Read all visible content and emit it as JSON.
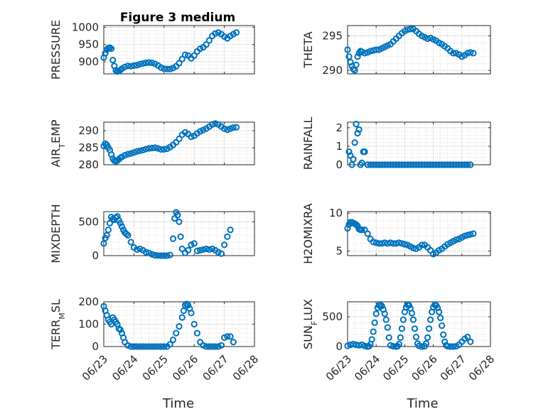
{
  "chart_data": [
    {
      "type": "scatter",
      "title": "Figure 3 medium",
      "ylabel": "PRESSURE",
      "xlabel": "",
      "xlim": [
        0,
        5
      ],
      "ylim": [
        865,
        1005
      ],
      "yticks": [
        900,
        950,
        1000
      ],
      "xticks": [
        "06/23",
        "06/24",
        "06/25",
        "06/26",
        "06/27",
        "06/28"
      ],
      "show_xticklabels": false,
      "x": [
        0.0,
        0.05,
        0.1,
        0.15,
        0.2,
        0.25,
        0.3,
        0.35,
        0.4,
        0.45,
        0.5,
        0.55,
        0.6,
        0.7,
        0.8,
        0.9,
        1.0,
        1.1,
        1.2,
        1.3,
        1.4,
        1.5,
        1.6,
        1.7,
        1.8,
        1.9,
        2.0,
        2.1,
        2.2,
        2.3,
        2.4,
        2.5,
        2.6,
        2.7,
        2.8,
        2.9,
        3.0,
        3.1,
        3.2,
        3.3,
        3.4,
        3.5,
        3.6,
        3.7,
        3.8,
        3.9,
        4.0,
        4.1,
        4.2,
        4.3,
        4.4
      ],
      "values": [
        912,
        925,
        935,
        940,
        941,
        938,
        905,
        888,
        875,
        872,
        873,
        876,
        880,
        885,
        888,
        887,
        889,
        890,
        893,
        895,
        897,
        898,
        897,
        894,
        889,
        883,
        880,
        879,
        879,
        882,
        887,
        896,
        908,
        920,
        918,
        910,
        918,
        930,
        938,
        942,
        950,
        962,
        975,
        982,
        985,
        980,
        973,
        968,
        975,
        980,
        985
      ]
    },
    {
      "type": "scatter",
      "title": "",
      "ylabel": "THETA",
      "xlabel": "",
      "xlim": [
        0,
        5
      ],
      "ylim": [
        289.5,
        296.5
      ],
      "yticks": [
        290,
        295
      ],
      "xticks": [
        "06/23",
        "06/24",
        "06/25",
        "06/26",
        "06/27",
        "06/28"
      ],
      "show_xticklabels": false,
      "x": [
        0.0,
        0.05,
        0.1,
        0.15,
        0.2,
        0.25,
        0.3,
        0.35,
        0.4,
        0.45,
        0.5,
        0.6,
        0.7,
        0.8,
        0.9,
        1.0,
        1.1,
        1.2,
        1.3,
        1.4,
        1.5,
        1.6,
        1.7,
        1.8,
        1.9,
        2.0,
        2.1,
        2.2,
        2.3,
        2.4,
        2.5,
        2.6,
        2.7,
        2.8,
        2.9,
        3.0,
        3.1,
        3.2,
        3.3,
        3.4,
        3.5,
        3.6,
        3.7,
        3.8,
        3.9,
        4.0,
        4.1,
        4.2,
        4.3,
        4.4
      ],
      "values": [
        293.0,
        292.0,
        291.2,
        290.6,
        290.2,
        290.0,
        290.8,
        292.0,
        292.5,
        292.8,
        292.7,
        292.5,
        292.6,
        292.8,
        292.9,
        293.0,
        293.0,
        293.2,
        293.4,
        293.6,
        293.8,
        294.2,
        294.6,
        295.0,
        295.4,
        295.7,
        295.9,
        296.0,
        296.0,
        295.7,
        295.3,
        295.0,
        294.8,
        294.6,
        294.7,
        294.5,
        294.3,
        294.0,
        293.8,
        293.5,
        293.2,
        292.8,
        292.5,
        292.5,
        292.3,
        292.0,
        292.2,
        292.5,
        292.6,
        292.5
      ]
    },
    {
      "type": "scatter",
      "title": "",
      "ylabel": "AIR_TEMP",
      "xlabel": "",
      "xlim": [
        0,
        5
      ],
      "ylim": [
        280,
        292.5
      ],
      "yticks": [
        280,
        285,
        290
      ],
      "xticks": [
        "06/23",
        "06/24",
        "06/25",
        "06/26",
        "06/27",
        "06/28"
      ],
      "show_xticklabels": false,
      "x": [
        0.0,
        0.05,
        0.1,
        0.15,
        0.2,
        0.25,
        0.3,
        0.35,
        0.4,
        0.45,
        0.5,
        0.55,
        0.6,
        0.7,
        0.8,
        0.9,
        1.0,
        1.1,
        1.2,
        1.3,
        1.4,
        1.5,
        1.6,
        1.7,
        1.8,
        1.9,
        2.0,
        2.1,
        2.2,
        2.3,
        2.4,
        2.5,
        2.6,
        2.7,
        2.8,
        2.9,
        3.0,
        3.1,
        3.2,
        3.3,
        3.4,
        3.5,
        3.6,
        3.7,
        3.8,
        3.9,
        4.0,
        4.1,
        4.2,
        4.3,
        4.4
      ],
      "values": [
        285.5,
        286.2,
        285.8,
        285.0,
        284.3,
        283.0,
        281.8,
        281.2,
        281.0,
        281.2,
        281.6,
        282.0,
        282.3,
        282.8,
        283.1,
        283.3,
        283.6,
        283.9,
        284.1,
        284.3,
        284.6,
        284.8,
        284.9,
        285.0,
        284.8,
        284.5,
        284.5,
        284.7,
        285.2,
        285.8,
        286.6,
        287.6,
        288.8,
        289.5,
        289.0,
        288.2,
        288.5,
        289.2,
        289.8,
        290.2,
        290.6,
        291.2,
        291.8,
        292.1,
        291.8,
        291.2,
        290.6,
        290.3,
        290.6,
        290.9,
        291.0
      ]
    },
    {
      "type": "scatter",
      "title": "",
      "ylabel": "RAINFALL",
      "xlabel": "",
      "xlim": [
        0,
        5
      ],
      "ylim": [
        0,
        2.3
      ],
      "yticks": [
        0,
        1,
        2
      ],
      "xticks": [
        "06/23",
        "06/24",
        "06/25",
        "06/26",
        "06/27",
        "06/28"
      ],
      "show_xticklabels": false,
      "x": [
        0.05,
        0.1,
        0.15,
        0.2,
        0.25,
        0.3,
        0.35,
        0.4,
        0.45,
        0.5,
        0.55,
        0.6,
        0.7,
        0.8,
        0.9,
        1.0,
        1.1,
        1.2,
        1.3,
        1.4,
        1.5,
        1.6,
        1.7,
        1.8,
        1.9,
        2.0,
        2.1,
        2.2,
        2.3,
        2.4,
        2.5,
        2.6,
        2.7,
        2.8,
        2.9,
        3.0,
        3.1,
        3.2,
        3.3,
        3.4,
        3.5,
        3.6,
        3.7,
        3.8,
        3.9,
        4.0,
        4.1,
        4.2,
        4.3
      ],
      "values": [
        0.7,
        0.5,
        0.0,
        0.3,
        1.2,
        2.2,
        1.7,
        1.9,
        0.0,
        0.1,
        0.7,
        0.7,
        0.0,
        0.0,
        0.0,
        0.0,
        0.0,
        0.0,
        0.0,
        0.0,
        0.0,
        0.0,
        0.0,
        0.0,
        0.0,
        0.0,
        0.0,
        0.0,
        0.0,
        0.0,
        0.0,
        0.0,
        0.0,
        0.0,
        0.0,
        0.0,
        0.0,
        0.0,
        0.0,
        0.0,
        0.0,
        0.0,
        0.0,
        0.0,
        0.0,
        0.0,
        0.0,
        0.0,
        0.0
      ]
    },
    {
      "type": "scatter",
      "title": "",
      "ylabel": "MIXDEPTH",
      "xlabel": "",
      "xlim": [
        0,
        5
      ],
      "ylim": [
        0,
        650
      ],
      "yticks": [
        0,
        500
      ],
      "xticks": [
        "06/23",
        "06/24",
        "06/25",
        "06/26",
        "06/27",
        "06/28"
      ],
      "show_xticklabels": false,
      "x": [
        0.0,
        0.05,
        0.1,
        0.15,
        0.2,
        0.25,
        0.3,
        0.35,
        0.4,
        0.45,
        0.5,
        0.55,
        0.6,
        0.65,
        0.7,
        0.75,
        0.8,
        0.9,
        1.0,
        1.1,
        1.2,
        1.3,
        1.4,
        1.5,
        1.6,
        1.7,
        1.8,
        1.9,
        2.0,
        2.1,
        2.2,
        2.3,
        2.35,
        2.4,
        2.45,
        2.5,
        2.55,
        2.6,
        2.7,
        2.8,
        2.9,
        3.0,
        3.1,
        3.2,
        3.3,
        3.4,
        3.5,
        3.6,
        3.7,
        3.8,
        3.9,
        4.0,
        4.1,
        4.2
      ],
      "values": [
        180,
        260,
        300,
        380,
        480,
        570,
        540,
        530,
        560,
        580,
        520,
        480,
        430,
        380,
        340,
        320,
        300,
        200,
        120,
        90,
        100,
        80,
        50,
        40,
        20,
        5,
        2,
        0,
        0,
        0,
        10,
        250,
        550,
        640,
        600,
        500,
        280,
        100,
        40,
        80,
        160,
        180,
        70,
        80,
        90,
        100,
        90,
        100,
        80,
        50,
        30,
        160,
        280,
        380
      ]
    },
    {
      "type": "scatter",
      "title": "",
      "ylabel": "H2OMIXRA",
      "xlabel": "",
      "xlim": [
        0,
        5
      ],
      "ylim": [
        4.4,
        10.2
      ],
      "yticks": [
        5,
        10
      ],
      "xticks": [
        "06/23",
        "06/24",
        "06/25",
        "06/26",
        "06/27",
        "06/28"
      ],
      "show_xticklabels": false,
      "x": [
        0.0,
        0.05,
        0.1,
        0.15,
        0.2,
        0.25,
        0.3,
        0.35,
        0.4,
        0.45,
        0.5,
        0.6,
        0.7,
        0.8,
        0.9,
        1.0,
        1.1,
        1.2,
        1.3,
        1.4,
        1.5,
        1.6,
        1.7,
        1.8,
        1.9,
        2.0,
        2.1,
        2.2,
        2.3,
        2.4,
        2.5,
        2.6,
        2.7,
        2.8,
        2.9,
        3.0,
        3.1,
        3.2,
        3.3,
        3.4,
        3.5,
        3.6,
        3.7,
        3.8,
        3.9,
        4.0,
        4.1,
        4.2,
        4.3,
        4.4
      ],
      "values": [
        8.0,
        8.5,
        8.8,
        8.8,
        8.7,
        8.6,
        8.5,
        8.3,
        7.9,
        7.8,
        7.8,
        7.8,
        7.3,
        6.6,
        6.2,
        6.1,
        6.0,
        6.0,
        6.1,
        6.0,
        6.1,
        6.0,
        6.0,
        6.1,
        6.0,
        5.9,
        5.8,
        5.6,
        5.4,
        5.3,
        5.5,
        5.8,
        5.8,
        5.5,
        5.1,
        4.6,
        4.8,
        5.1,
        5.3,
        5.6,
        5.9,
        6.1,
        6.3,
        6.5,
        6.6,
        6.8,
        7.0,
        7.1,
        7.2,
        7.3
      ]
    },
    {
      "type": "scatter",
      "title": "",
      "ylabel": "TERR_MSL",
      "xlabel": "Time",
      "xlim": [
        0,
        5
      ],
      "ylim": [
        0,
        200
      ],
      "yticks": [
        0,
        100,
        200
      ],
      "xticks": [
        "06/23",
        "06/24",
        "06/25",
        "06/26",
        "06/27",
        "06/28"
      ],
      "show_xticklabels": true,
      "x": [
        0.0,
        0.05,
        0.1,
        0.15,
        0.2,
        0.25,
        0.3,
        0.35,
        0.4,
        0.45,
        0.5,
        0.55,
        0.6,
        0.65,
        0.7,
        0.8,
        0.9,
        1.0,
        1.1,
        1.2,
        1.3,
        1.4,
        1.5,
        1.6,
        1.7,
        1.8,
        1.9,
        2.0,
        2.1,
        2.2,
        2.3,
        2.4,
        2.5,
        2.6,
        2.65,
        2.7,
        2.75,
        2.8,
        2.85,
        2.9,
        3.0,
        3.1,
        3.2,
        3.3,
        3.4,
        3.5,
        3.6,
        3.7,
        3.8,
        3.9,
        4.0,
        4.1,
        4.2,
        4.3
      ],
      "values": [
        180,
        160,
        140,
        120,
        110,
        100,
        130,
        120,
        110,
        100,
        80,
        75,
        60,
        40,
        20,
        5,
        0,
        0,
        0,
        0,
        0,
        0,
        0,
        0,
        0,
        0,
        0,
        0,
        0,
        10,
        30,
        60,
        90,
        130,
        160,
        185,
        190,
        185,
        170,
        150,
        100,
        60,
        20,
        5,
        0,
        0,
        0,
        0,
        0,
        5,
        40,
        45,
        45,
        20
      ]
    },
    {
      "type": "scatter",
      "title": "",
      "ylabel": "SUN_FLUX",
      "xlabel": "Time",
      "xlim": [
        0,
        5
      ],
      "ylim": [
        0,
        750
      ],
      "yticks": [
        0,
        500
      ],
      "xticks": [
        "06/23",
        "06/24",
        "06/25",
        "06/26",
        "06/27",
        "06/28"
      ],
      "show_xticklabels": true,
      "x": [
        0.0,
        0.1,
        0.2,
        0.3,
        0.4,
        0.5,
        0.6,
        0.7,
        0.75,
        0.8,
        0.85,
        0.9,
        0.95,
        1.0,
        1.05,
        1.1,
        1.15,
        1.2,
        1.25,
        1.3,
        1.35,
        1.4,
        1.45,
        1.5,
        1.6,
        1.7,
        1.75,
        1.8,
        1.85,
        1.9,
        1.95,
        2.0,
        2.05,
        2.1,
        2.15,
        2.2,
        2.25,
        2.3,
        2.35,
        2.4,
        2.45,
        2.5,
        2.6,
        2.7,
        2.75,
        2.8,
        2.85,
        2.9,
        2.95,
        3.0,
        3.05,
        3.1,
        3.15,
        3.2,
        3.25,
        3.3,
        3.35,
        3.4,
        3.45,
        3.5,
        3.6,
        3.7,
        3.8,
        3.9,
        4.0,
        4.1,
        4.2,
        4.3
      ],
      "values": [
        10,
        30,
        40,
        30,
        20,
        30,
        10,
        0,
        5,
        40,
        120,
        250,
        400,
        550,
        650,
        690,
        700,
        680,
        620,
        550,
        450,
        320,
        150,
        20,
        5,
        0,
        5,
        40,
        150,
        300,
        450,
        580,
        660,
        700,
        690,
        640,
        560,
        450,
        300,
        160,
        50,
        10,
        0,
        5,
        50,
        150,
        300,
        450,
        580,
        660,
        700,
        690,
        650,
        580,
        480,
        350,
        200,
        80,
        20,
        5,
        0,
        0,
        5,
        30,
        80,
        130,
        160,
        80
      ]
    }
  ]
}
